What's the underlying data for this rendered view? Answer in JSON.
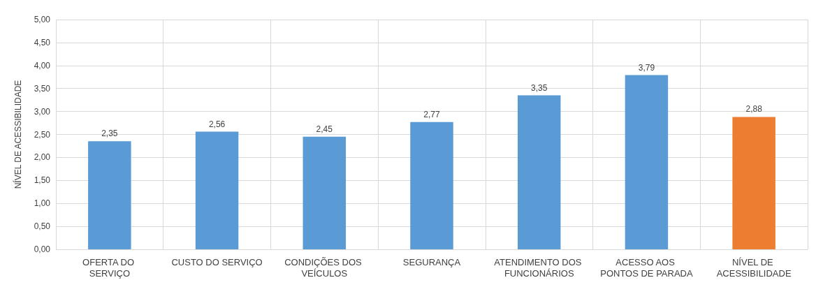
{
  "chart_data": {
    "type": "bar",
    "ylabel": "NÍVEL DE ACESSIBILIDADE",
    "categories": [
      "OFERTA DO SERVIÇO",
      "CUSTO DO SERVIÇO",
      "CONDIÇÕES DOS VEÍCULOS",
      "SEGURANÇA",
      "ATENDIMENTO DOS FUNCIONÁRIOS",
      "ACESSO AOS PONTOS DE PARADA",
      "NÍVEL DE ACESSIBILIDADE"
    ],
    "values": [
      2.35,
      2.56,
      2.45,
      2.77,
      3.35,
      3.79,
      2.88
    ],
    "colors": [
      "#5b9bd5",
      "#5b9bd5",
      "#5b9bd5",
      "#5b9bd5",
      "#5b9bd5",
      "#5b9bd5",
      "#ed7d31"
    ],
    "ylim": [
      0,
      5
    ],
    "yticks": [
      {
        "value": 0,
        "label": "0,00"
      },
      {
        "value": 0.5,
        "label": "0,50"
      },
      {
        "value": 1,
        "label": "1,00"
      },
      {
        "value": 1.5,
        "label": "1,50"
      },
      {
        "value": 2,
        "label": "2,00"
      },
      {
        "value": 2.5,
        "label": "2,50"
      },
      {
        "value": 3,
        "label": "3,00"
      },
      {
        "value": 3.5,
        "label": "3,50"
      },
      {
        "value": 4,
        "label": "4,00"
      },
      {
        "value": 4.5,
        "label": "4,50"
      },
      {
        "value": 5,
        "label": "5,00"
      }
    ],
    "value_labels": [
      "2,35",
      "2,56",
      "2,45",
      "2,77",
      "3,35",
      "3,79",
      "2,88"
    ],
    "grid": true
  }
}
